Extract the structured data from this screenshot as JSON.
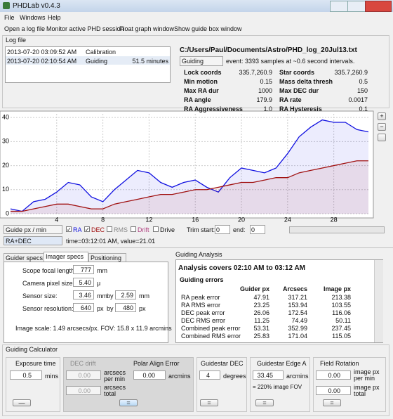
{
  "window": {
    "title": "PHDLab v0.4.3",
    "menu": [
      "File",
      "Windows",
      "Help"
    ]
  },
  "toolbar": [
    "Open a log file",
    "Monitor active PHD session",
    "Float graph window",
    "Show guide box window"
  ],
  "log_file": {
    "title": "Log file",
    "rows": [
      [
        "2013-07-20 03:09:52 AM",
        "Calibration",
        ""
      ],
      [
        "2013-07-20 02:10:54 AM",
        "Guiding",
        "51.5 minutes"
      ]
    ],
    "path": "C:/Users/Paul/Documents/Astro/PHD_log_20Jul13.txt",
    "section": "Guiding",
    "event_info": "event: 3393 samples at ~0.6 second intervals.",
    "stats": [
      [
        "Lock coords",
        "335.7,260.9"
      ],
      [
        "Min motion",
        "0.15"
      ],
      [
        "Max RA dur",
        "1000"
      ],
      [
        "RA angle",
        "179.9"
      ],
      [
        "RA Aggressiveness",
        "1.0"
      ],
      [
        "Star coords",
        "335.7,260.9"
      ],
      [
        "Mass delta thresh",
        "0.5"
      ],
      [
        "Max DEC dur",
        "150"
      ],
      [
        "RA rate",
        "0.0017"
      ],
      [
        "RA Hysteresis",
        "0.1"
      ]
    ]
  },
  "chart_data": {
    "type": "line",
    "x": [
      0,
      1,
      2,
      3,
      4,
      5,
      6,
      7,
      8,
      9,
      10,
      11,
      12,
      13,
      14,
      15,
      16,
      17,
      18,
      19,
      20,
      21,
      22,
      23,
      24,
      25,
      26,
      27,
      28,
      29,
      30,
      31
    ],
    "series": [
      {
        "name": "RA",
        "color": "#1010e0",
        "values": [
          2,
          1,
          5,
          6,
          9,
          13,
          12,
          7,
          5,
          10,
          14,
          18,
          17,
          13,
          11,
          13,
          14,
          11,
          9,
          15,
          19,
          18,
          17,
          19,
          25,
          32,
          36,
          39,
          38,
          38,
          35,
          34
        ]
      },
      {
        "name": "DEC",
        "color": "#a01010",
        "values": [
          1,
          1,
          2,
          3,
          4,
          4,
          3,
          2,
          2,
          4,
          5,
          6,
          7,
          8,
          8,
          9,
          10,
          10,
          11,
          12,
          13,
          13,
          14,
          15,
          15,
          17,
          18,
          19,
          20,
          21,
          22,
          22
        ]
      }
    ],
    "xlim": [
      0,
      31
    ],
    "ylim": [
      0,
      41.5
    ],
    "xticks": [
      4,
      8,
      12,
      16,
      20,
      24,
      28
    ],
    "yticks": [
      0,
      10,
      20,
      30,
      40
    ],
    "grid": true
  },
  "chart_controls": {
    "units": "Guide px / min",
    "checks": [
      "RA",
      "DEC",
      "RMS",
      "Drift",
      "Drive"
    ],
    "trim_start": "Trim start:",
    "trim_start_value": "0",
    "trim_end": "end:",
    "trim_end_value": "0",
    "mode": "RA+DEC",
    "cursor": "time=03:12:01 AM, value=21.01"
  },
  "specs": {
    "tabs": [
      "Guider specs",
      "Imager specs",
      "Positioning"
    ],
    "focal_label": "Scope focal length:",
    "focal": "777",
    "focal_unit": "mm",
    "pixel_label": "Camera pixel size:",
    "pixel": "5.40",
    "pixel_unit": "μ",
    "sensor_label": "Sensor size:",
    "sensor_w": "3.46",
    "sensor_w_unit": "mm",
    "by": "by",
    "sensor_h": "2.59",
    "sensor_h_unit": "mm",
    "res_label": "Sensor resolution:",
    "res_w": "640",
    "res_w_unit": "px",
    "res_h": "480",
    "res_h_unit": "px",
    "scale": "Image scale: 1.49 arcsecs/px. FOV: 15.8 x 11.9 arcmins"
  },
  "analysis": {
    "title": "Guiding Analysis",
    "covers": "Analysis covers 02:10 AM to 03:12 AM",
    "errors_title": "Guiding errors",
    "header": [
      "Guider px",
      "Arcsecs",
      "Image px"
    ],
    "rows": [
      [
        "RA peak error",
        "47.91",
        "317.21",
        "213.38"
      ],
      [
        "RA RMS error",
        "23.25",
        "153.94",
        "103.55"
      ],
      [
        "DEC peak error",
        "26.06",
        "172.54",
        "116.06"
      ],
      [
        "DEC RMS error",
        "11.25",
        "74.49",
        "50.11"
      ],
      [
        "Combined peak error",
        "53.31",
        "352.99",
        "237.45"
      ],
      [
        "Combined RMS error",
        "25.83",
        "171.04",
        "115.05"
      ]
    ]
  },
  "calculator": {
    "title": "Guiding Calculator",
    "exposure": {
      "title": "Exposure time",
      "value": "0.5",
      "unit": "mins"
    },
    "dec_drift": {
      "title": "DEC drift",
      "rate": "0.00",
      "rate_unit": "arcsecs per min",
      "total": "0.00",
      "total_unit": "arcsecs total"
    },
    "polar": {
      "title": "Polar Align Error",
      "value": "0.00",
      "unit": "arcmins"
    },
    "guidestar_dec": {
      "title": "Guidestar DEC",
      "value": "4",
      "unit": "degrees"
    },
    "edge": {
      "title": "Guidestar Edge A",
      "value": "33.45",
      "unit": "arcmins",
      "note": "= 220% image FOV"
    },
    "rotation": {
      "title": "Field Rotation",
      "rate": "0.00",
      "rate_unit": "image px per min",
      "total": "0.00",
      "total_unit": "image px total"
    }
  }
}
